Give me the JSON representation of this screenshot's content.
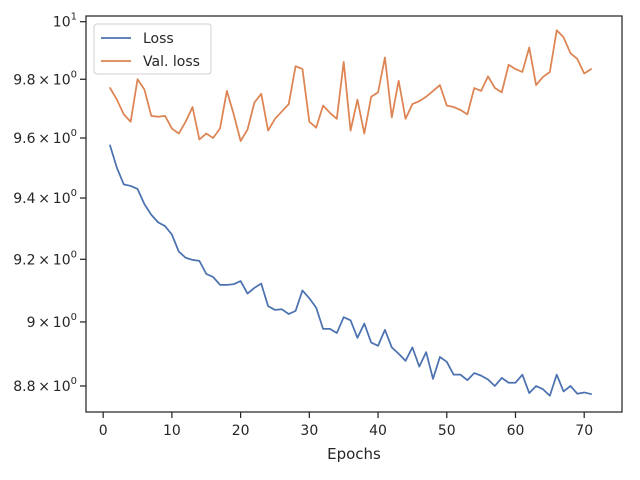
{
  "chart_data": {
    "type": "line",
    "title": "",
    "xlabel": "Epochs",
    "ylabel": "",
    "yscale": "log",
    "xlim": [
      -2.5,
      75.5
    ],
    "ylim": [
      8.72,
      10.02
    ],
    "grid": false,
    "legend_position": "top-left",
    "x_ticks": [
      0,
      10,
      20,
      30,
      40,
      50,
      60,
      70
    ],
    "x_tick_labels": [
      "0",
      "10",
      "20",
      "30",
      "40",
      "50",
      "60",
      "70"
    ],
    "y_ticks": [
      {
        "value": 8.8,
        "mantissa": "8.8",
        "exp": "0"
      },
      {
        "value": 9.0,
        "mantissa": "9",
        "exp": "0"
      },
      {
        "value": 9.2,
        "mantissa": "9.2",
        "exp": "0"
      },
      {
        "value": 9.4,
        "mantissa": "9.4",
        "exp": "0"
      },
      {
        "value": 9.6,
        "mantissa": "9.6",
        "exp": "0"
      },
      {
        "value": 9.8,
        "mantissa": "9.8",
        "exp": "0"
      },
      {
        "value": 10.0,
        "mantissa": "10",
        "exp": "1"
      }
    ],
    "x": [
      1,
      2,
      3,
      4,
      5,
      6,
      7,
      8,
      9,
      10,
      11,
      12,
      13,
      14,
      15,
      16,
      17,
      18,
      19,
      20,
      21,
      22,
      23,
      24,
      25,
      26,
      27,
      28,
      29,
      30,
      31,
      32,
      33,
      34,
      35,
      36,
      37,
      38,
      39,
      40,
      41,
      42,
      43,
      44,
      45,
      46,
      47,
      48,
      49,
      50,
      51,
      52,
      53,
      54,
      55,
      56,
      57,
      58,
      59,
      60,
      61,
      62,
      63,
      64,
      65,
      66,
      67,
      68,
      69,
      70,
      71
    ],
    "series": [
      {
        "name": "Loss",
        "color": "#4c72b0",
        "values": [
          9.575,
          9.5,
          9.445,
          9.44,
          9.43,
          9.38,
          9.345,
          9.32,
          9.308,
          9.28,
          9.225,
          9.205,
          9.198,
          9.195,
          9.153,
          9.143,
          9.118,
          9.118,
          9.12,
          9.13,
          9.09,
          9.108,
          9.122,
          9.05,
          9.038,
          9.04,
          9.025,
          9.035,
          9.1,
          9.075,
          9.045,
          8.978,
          8.978,
          8.965,
          9.015,
          9.005,
          8.95,
          8.995,
          8.935,
          8.925,
          8.975,
          8.92,
          8.9,
          8.878,
          8.92,
          8.86,
          8.905,
          8.822,
          8.89,
          8.875,
          8.835,
          8.835,
          8.818,
          8.84,
          8.832,
          8.82,
          8.8,
          8.825,
          8.81,
          8.81,
          8.835,
          8.778,
          8.8,
          8.79,
          8.77,
          8.835,
          8.783,
          8.8,
          8.776,
          8.78,
          8.775
        ]
      },
      {
        "name": "Val. loss",
        "color": "#dd8452",
        "values": [
          9.77,
          9.73,
          9.68,
          9.655,
          9.8,
          9.765,
          9.675,
          9.672,
          9.675,
          9.632,
          9.615,
          9.655,
          9.705,
          9.595,
          9.615,
          9.6,
          9.632,
          9.76,
          9.68,
          9.59,
          9.628,
          9.72,
          9.75,
          9.625,
          9.665,
          9.69,
          9.715,
          9.845,
          9.835,
          9.655,
          9.635,
          9.71,
          9.685,
          9.665,
          9.86,
          9.625,
          9.73,
          9.615,
          9.74,
          9.755,
          9.875,
          9.67,
          9.795,
          9.665,
          9.715,
          9.725,
          9.74,
          9.76,
          9.78,
          9.71,
          9.705,
          9.695,
          9.68,
          9.77,
          9.76,
          9.81,
          9.77,
          9.755,
          9.85,
          9.835,
          9.825,
          9.91,
          9.78,
          9.808,
          9.825,
          9.97,
          9.945,
          9.89,
          9.87,
          9.82,
          9.835
        ]
      }
    ]
  }
}
